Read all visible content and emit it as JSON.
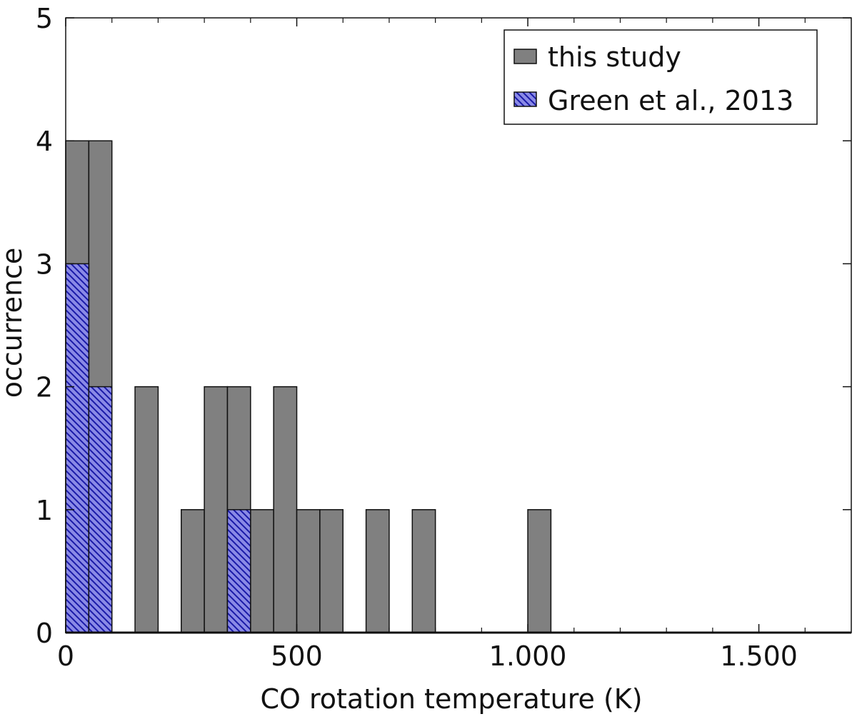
{
  "chart_data": {
    "type": "bar",
    "xlabel": "CO rotation temperature (K)",
    "ylabel": "occurrence",
    "xlim": [
      0,
      1700
    ],
    "ylim": [
      0,
      5
    ],
    "bin_width": 50,
    "x_ticks": [
      0,
      500,
      1000,
      1500
    ],
    "x_tick_labels": [
      "0",
      "500",
      "1.000",
      "1.500"
    ],
    "x_minor_step": 100,
    "y_ticks": [
      0,
      1,
      2,
      3,
      4,
      5
    ],
    "y_tick_labels": [
      "0",
      "1",
      "2",
      "3",
      "4",
      "5"
    ],
    "legend_position": "top-right",
    "grid": false,
    "series": [
      {
        "name": "this study",
        "style": "solid",
        "fill": "#808080",
        "bins": [
          {
            "start": 0,
            "end": 50,
            "value": 4
          },
          {
            "start": 50,
            "end": 100,
            "value": 4
          },
          {
            "start": 150,
            "end": 200,
            "value": 2
          },
          {
            "start": 250,
            "end": 300,
            "value": 1
          },
          {
            "start": 300,
            "end": 350,
            "value": 2
          },
          {
            "start": 350,
            "end": 400,
            "value": 2
          },
          {
            "start": 400,
            "end": 450,
            "value": 1
          },
          {
            "start": 450,
            "end": 500,
            "value": 2
          },
          {
            "start": 500,
            "end": 550,
            "value": 1
          },
          {
            "start": 550,
            "end": 600,
            "value": 1
          },
          {
            "start": 650,
            "end": 700,
            "value": 1
          },
          {
            "start": 750,
            "end": 800,
            "value": 1
          },
          {
            "start": 1000,
            "end": 1050,
            "value": 1
          }
        ]
      },
      {
        "name": "Green et al., 2013",
        "style": "hatched",
        "fill": "#8a8ae6",
        "hatch_color": "#1a1aa8",
        "bins": [
          {
            "start": 0,
            "end": 50,
            "value": 3
          },
          {
            "start": 50,
            "end": 100,
            "value": 2
          },
          {
            "start": 350,
            "end": 400,
            "value": 1
          }
        ]
      }
    ]
  }
}
